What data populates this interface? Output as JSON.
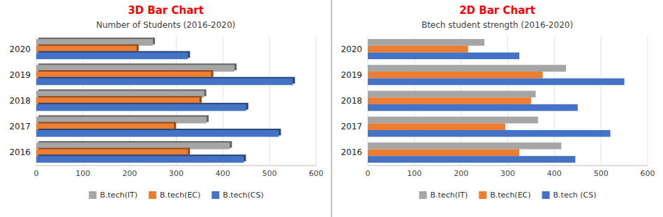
{
  "chart_data": [
    {
      "type": "bar",
      "orientation": "horizontal",
      "title": "3D Bar Chart",
      "subtitle": "Number of Students (2016-2020)",
      "categories": [
        "2016",
        "2017",
        "2018",
        "2019",
        "2020"
      ],
      "series": [
        {
          "name": "B.tech(IT)",
          "color": "#a6a6a6",
          "values": [
            415,
            365,
            360,
            425,
            250
          ]
        },
        {
          "name": "B.tech(EC)",
          "color": "#ed7d31",
          "values": [
            325,
            295,
            350,
            375,
            215
          ]
        },
        {
          "name": "B.tech(CS)",
          "color": "#4472c4",
          "values": [
            445,
            520,
            450,
            550,
            325
          ]
        }
      ],
      "xlim": [
        0,
        600
      ],
      "xticks": [
        0,
        100,
        200,
        300,
        400,
        500,
        600
      ],
      "grid": true,
      "legend": "bottom"
    },
    {
      "type": "bar",
      "orientation": "horizontal",
      "title": "2D Bar Chart",
      "subtitle": "Btech student strength (2016-2020)",
      "categories": [
        "2016",
        "2017",
        "2018",
        "2019",
        "2020"
      ],
      "series": [
        {
          "name": "B.tech(IT)",
          "color": "#a6a6a6",
          "values": [
            415,
            365,
            360,
            425,
            250
          ]
        },
        {
          "name": "B.tech(EC)",
          "color": "#ed7d31",
          "values": [
            325,
            295,
            350,
            375,
            215
          ]
        },
        {
          "name": "B.tech (CS)",
          "color": "#4472c4",
          "values": [
            445,
            520,
            450,
            550,
            325
          ]
        }
      ],
      "xlim": [
        0,
        600
      ],
      "xticks": [
        0,
        100,
        200,
        300,
        400,
        500,
        600
      ],
      "grid": true,
      "legend": "bottom"
    }
  ]
}
